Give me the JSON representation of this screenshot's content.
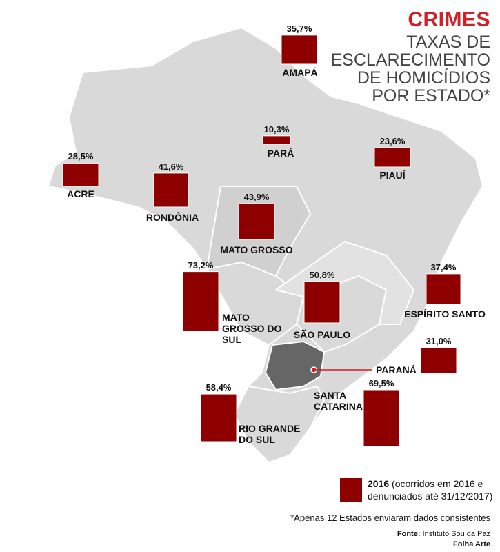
{
  "header": {
    "title": "CRIMES",
    "subtitle_lines": [
      "TAXAS DE",
      "ESCLARECIMENTO",
      "DE HOMICÍDIOS",
      "POR ESTADO*"
    ]
  },
  "states": [
    {
      "name": "AMAPÁ",
      "value": 35.7,
      "value_label": "35,7%"
    },
    {
      "name": "PARÁ",
      "value": 10.3,
      "value_label": "10,3%"
    },
    {
      "name": "ACRE",
      "value": 28.5,
      "value_label": "28,5%"
    },
    {
      "name": "RONDÔNIA",
      "value": 41.6,
      "value_label": "41,6%"
    },
    {
      "name": "MATO GROSSO",
      "value": 43.9,
      "value_label": "43,9%"
    },
    {
      "name": "PIAUÍ",
      "value": 23.6,
      "value_label": "23,6%"
    },
    {
      "name": "MATO GROSSO DO SUL",
      "value": 73.2,
      "value_label": "73,2%"
    },
    {
      "name": "SÃO PAULO",
      "value": 50.8,
      "value_label": "50,8%"
    },
    {
      "name": "ESPÍRITO SANTO",
      "value": 37.4,
      "value_label": "37,4%"
    },
    {
      "name": "PARANÁ",
      "value": 31.0,
      "value_label": "31,0%"
    },
    {
      "name": "SANTA CATARINA",
      "value": 69.5,
      "value_label": "69,5%"
    },
    {
      "name": "RIO GRANDE DO SUL",
      "value": 58.4,
      "value_label": "58,4%"
    }
  ],
  "legend": {
    "year": "2016",
    "text": "(ocorridos em 2016 e denunciados até 31/12/2017)"
  },
  "footnote": "*Apenas 12 Estados enviaram dados consistentes",
  "source": {
    "label": "Fonte:",
    "text": "Instituto Sou da Paz"
  },
  "credit": "Folha Arte"
}
